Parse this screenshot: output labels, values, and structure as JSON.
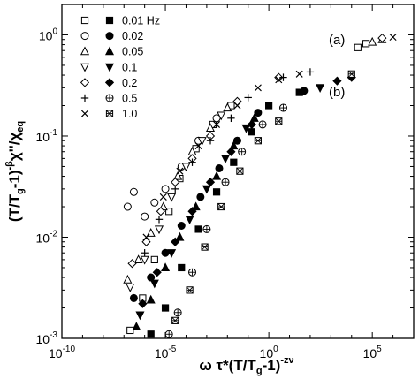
{
  "chart_data": {
    "type": "scatter",
    "x_scale": "log",
    "y_scale": "log",
    "xlim": [
      1e-10,
      10000000.0
    ],
    "ylim": [
      0.001,
      2
    ],
    "xlabel": "ω τ*(T/Tg-1)^-zν",
    "ylabel": "(T/Tg-1)^-β χ''/χeq",
    "x_ticks": [
      {
        "value": 1e-10,
        "mantissa": "10",
        "exp": "-10"
      },
      {
        "value": 1e-05,
        "mantissa": "10",
        "exp": "-5"
      },
      {
        "value": 1,
        "mantissa": "10",
        "exp": "0"
      },
      {
        "value": 100000.0,
        "mantissa": "10",
        "exp": "5"
      }
    ],
    "y_ticks": [
      {
        "value": 0.001,
        "mantissa": "10",
        "exp": "-3"
      },
      {
        "value": 0.01,
        "mantissa": "10",
        "exp": "-2"
      },
      {
        "value": 0.1,
        "mantissa": "10",
        "exp": "-1"
      },
      {
        "value": 1,
        "mantissa": "10",
        "exp": "0"
      }
    ],
    "annotations": [
      {
        "text": "(a)",
        "x": 0.3,
        "y": 0.75
      },
      {
        "text": "(b)",
        "x": 0.3,
        "y": 0.2
      }
    ],
    "legend_placement": "top-left",
    "series": [
      {
        "name": "0.01 Hz",
        "group": "a",
        "marker": "square-open",
        "points": [
          [
            2e-07,
            0.0012
          ],
          [
            8e-07,
            0.0025
          ],
          [
            3e-06,
            0.006
          ],
          [
            1.5e-05,
            0.018
          ],
          [
            5e-05,
            0.038
          ],
          [
            0.0003,
            0.075
          ],
          [
            0.002,
            0.13
          ],
          [
            0.015,
            0.2
          ],
          [
            20000.0,
            0.75
          ],
          [
            50000.0,
            0.82
          ]
        ]
      },
      {
        "name": "0.01 Hz",
        "group": "b",
        "marker": "square-filled",
        "points": [
          [
            2e-06,
            0.0011
          ],
          [
            1e-05,
            0.002
          ],
          [
            6e-05,
            0.005
          ],
          [
            0.0004,
            0.012
          ],
          [
            0.003,
            0.028
          ],
          [
            0.02,
            0.055
          ],
          [
            0.15,
            0.11
          ],
          [
            1,
            0.2
          ],
          [
            30,
            0.27
          ]
        ]
      },
      {
        "name": "0.02",
        "group": "a",
        "marker": "circle-open",
        "points": [
          [
            1.5e-07,
            0.02
          ],
          [
            3e-07,
            0.028
          ],
          [
            1e-06,
            0.016
          ],
          [
            3e-06,
            0.022
          ],
          [
            1e-05,
            0.03
          ],
          [
            6e-05,
            0.05
          ],
          [
            0.0004,
            0.09
          ],
          [
            0.003,
            0.15
          ]
        ]
      },
      {
        "name": "0.02",
        "group": "b",
        "marker": "circle-filled",
        "points": [
          [
            3e-07,
            0.0025
          ],
          [
            2e-06,
            0.004
          ],
          [
            1e-05,
            0.007
          ],
          [
            6e-05,
            0.013
          ],
          [
            0.0005,
            0.025
          ],
          [
            0.004,
            0.048
          ],
          [
            0.03,
            0.09
          ],
          [
            0.3,
            0.17
          ],
          [
            50,
            0.28
          ]
        ]
      },
      {
        "name": "0.05",
        "group": "a",
        "marker": "triangle-up-open",
        "points": [
          [
            1.5e-07,
            0.0038
          ],
          [
            5e-07,
            0.006
          ],
          [
            2e-06,
            0.011
          ],
          [
            8e-06,
            0.02
          ],
          [
            4e-05,
            0.04
          ],
          [
            0.0002,
            0.07
          ],
          [
            0.0015,
            0.12
          ],
          [
            0.01,
            0.19
          ],
          [
            100000.0,
            0.85
          ],
          [
            300000.0,
            0.9
          ]
        ]
      },
      {
        "name": "0.05",
        "group": "b",
        "marker": "triangle-up-filled",
        "points": [
          [
            4e-07,
            0.0013
          ],
          [
            2e-06,
            0.0024
          ],
          [
            1e-05,
            0.005
          ],
          [
            5e-05,
            0.01
          ],
          [
            0.0003,
            0.02
          ],
          [
            0.003,
            0.04
          ],
          [
            0.02,
            0.08
          ],
          [
            0.2,
            0.15
          ]
        ]
      },
      {
        "name": "0.1",
        "group": "a",
        "marker": "triangle-down-open",
        "points": [
          [
            2e-07,
            0.0032
          ],
          [
            1e-06,
            0.006
          ],
          [
            5e-06,
            0.012
          ],
          [
            2e-05,
            0.025
          ],
          [
            0.0001,
            0.05
          ],
          [
            0.0006,
            0.09
          ],
          [
            0.005,
            0.16
          ]
        ]
      },
      {
        "name": "0.1",
        "group": "b",
        "marker": "triangle-down-filled",
        "points": [
          [
            6e-07,
            0.0017
          ],
          [
            3e-06,
            0.0035
          ],
          [
            2e-05,
            0.007
          ],
          [
            0.00015,
            0.015
          ],
          [
            0.001,
            0.03
          ],
          [
            0.008,
            0.06
          ],
          [
            0.08,
            0.12
          ],
          [
            300,
            0.3
          ]
        ]
      },
      {
        "name": "0.2",
        "group": "a",
        "marker": "diamond-open",
        "points": [
          [
            2.5e-07,
            0.0055
          ],
          [
            1.2e-06,
            0.009
          ],
          [
            6e-06,
            0.018
          ],
          [
            3e-05,
            0.035
          ],
          [
            0.0002,
            0.06
          ],
          [
            0.0015,
            0.1
          ],
          [
            0.03,
            0.22
          ],
          [
            3,
            0.38
          ],
          [
            300000.0,
            0.93
          ]
        ]
      },
      {
        "name": "0.2",
        "group": "b",
        "marker": "diamond-filled",
        "points": [
          [
            8e-07,
            0.0022
          ],
          [
            4e-06,
            0.0045
          ],
          [
            3e-05,
            0.009
          ],
          [
            0.0002,
            0.018
          ],
          [
            0.0015,
            0.035
          ],
          [
            0.015,
            0.07
          ],
          [
            0.15,
            0.13
          ],
          [
            2000.0,
            0.35
          ],
          [
            10000.0,
            0.38
          ]
        ]
      },
      {
        "name": "0.5",
        "group": "a",
        "marker": "plus",
        "points": [
          [
            1e-06,
            0.007
          ],
          [
            5e-06,
            0.015
          ],
          [
            3e-05,
            0.03
          ],
          [
            0.0002,
            0.055
          ],
          [
            0.0015,
            0.09
          ],
          [
            0.015,
            0.15
          ],
          [
            0.1,
            0.24
          ],
          [
            5,
            0.38
          ],
          [
            100,
            0.43
          ]
        ]
      },
      {
        "name": "0.5",
        "group": "b",
        "marker": "circle-plus",
        "points": [
          [
            1.5e-05,
            0.0011
          ],
          [
            4e-05,
            0.0018
          ],
          [
            0.0002,
            0.0045
          ],
          [
            0.001,
            0.012
          ],
          [
            0.008,
            0.035
          ],
          [
            0.05,
            0.07
          ],
          [
            0.5,
            0.13
          ],
          [
            5,
            0.19
          ]
        ]
      },
      {
        "name": "1.0",
        "group": "a",
        "marker": "cross",
        "points": [
          [
            1.2e-06,
            0.01
          ],
          [
            8e-06,
            0.025
          ],
          [
            5e-05,
            0.045
          ],
          [
            0.0004,
            0.08
          ],
          [
            0.003,
            0.13
          ],
          [
            0.03,
            0.2
          ],
          [
            0.3,
            0.3
          ],
          [
            3,
            0.36
          ],
          [
            30,
            0.41
          ],
          [
            1000000.0,
            0.95
          ]
        ]
      },
      {
        "name": "1.0",
        "group": "b",
        "marker": "square-cross",
        "points": [
          [
            3e-05,
            0.0015
          ],
          [
            0.00015,
            0.003
          ],
          [
            0.0008,
            0.008
          ],
          [
            0.005,
            0.02
          ],
          [
            0.04,
            0.045
          ],
          [
            0.3,
            0.09
          ],
          [
            3,
            0.14
          ],
          [
            10000.0,
            0.41
          ]
        ]
      }
    ]
  },
  "legend": {
    "rows": [
      {
        "label": "0.01 Hz",
        "open": "square-open",
        "filled": "square-filled"
      },
      {
        "label": "0.02",
        "open": "circle-open",
        "filled": "circle-filled"
      },
      {
        "label": "0.05",
        "open": "triangle-up-open",
        "filled": "triangle-up-filled"
      },
      {
        "label": "0.1",
        "open": "triangle-down-open",
        "filled": "triangle-down-filled"
      },
      {
        "label": "0.2",
        "open": "diamond-open",
        "filled": "diamond-filled"
      },
      {
        "label": "0.5",
        "open": "plus",
        "filled": "circle-plus"
      },
      {
        "label": "1.0",
        "open": "cross",
        "filled": "square-cross"
      }
    ]
  }
}
